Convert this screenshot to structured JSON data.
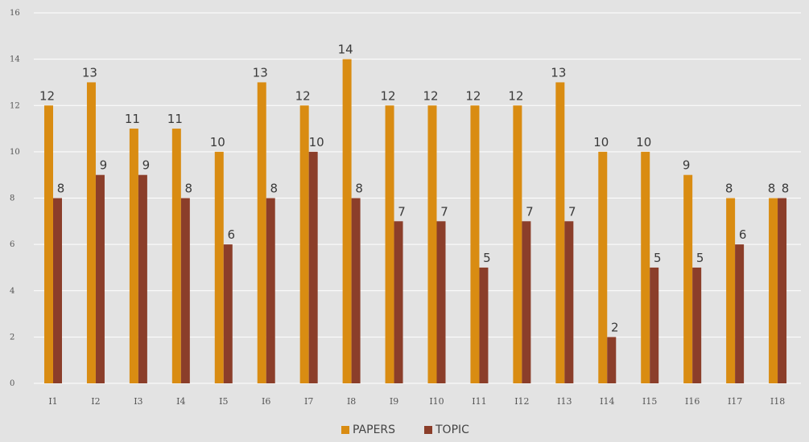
{
  "chart_data": {
    "type": "bar",
    "categories": [
      "I1",
      "I2",
      "I3",
      "I4",
      "I5",
      "I6",
      "I7",
      "I8",
      "I9",
      "I10",
      "I11",
      "I12",
      "I13",
      "I14",
      "I15",
      "I16",
      "I17",
      "I18"
    ],
    "series": [
      {
        "name": "PAPERS",
        "color": "#d98c12",
        "values": [
          12,
          13,
          11,
          11,
          10,
          13,
          12,
          14,
          12,
          12,
          12,
          12,
          13,
          10,
          10,
          9,
          8,
          8
        ]
      },
      {
        "name": "TOPIC",
        "color": "#8b3e2a",
        "values": [
          8,
          9,
          9,
          8,
          6,
          8,
          10,
          8,
          7,
          7,
          5,
          7,
          7,
          2,
          5,
          5,
          6,
          8
        ]
      }
    ],
    "yticks": [
      0,
      2,
      4,
      6,
      8,
      10,
      12,
      14,
      16
    ],
    "ylim": [
      0,
      16
    ],
    "grid": true,
    "legend_position": "bottom-center",
    "data_labels": true
  }
}
